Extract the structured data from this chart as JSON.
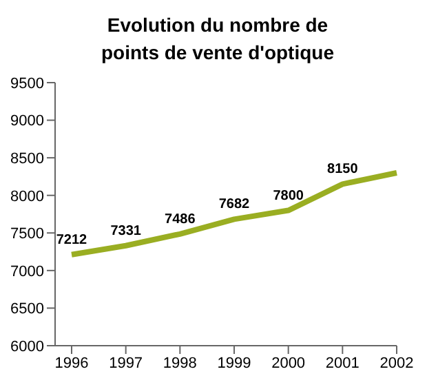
{
  "chart_data": {
    "type": "line",
    "title": "Evolution du nombre de points de vente d'optique",
    "categories": [
      "1996",
      "1997",
      "1998",
      "1999",
      "2000",
      "2001",
      "2002"
    ],
    "series": [
      {
        "color": "#9aae22",
        "values": [
          7212,
          7331,
          7486,
          7682,
          7800,
          8150,
          8300
        ]
      }
    ],
    "value_labels": [
      "7212",
      "7331",
      "7486",
      "7682",
      "7800",
      "8150",
      null
    ],
    "ylim": [
      6000,
      9500
    ],
    "yticks": [
      6000,
      6500,
      7000,
      7500,
      8000,
      8500,
      9000,
      9500
    ],
    "grid": false,
    "marker": "none",
    "line_style": "solid"
  }
}
